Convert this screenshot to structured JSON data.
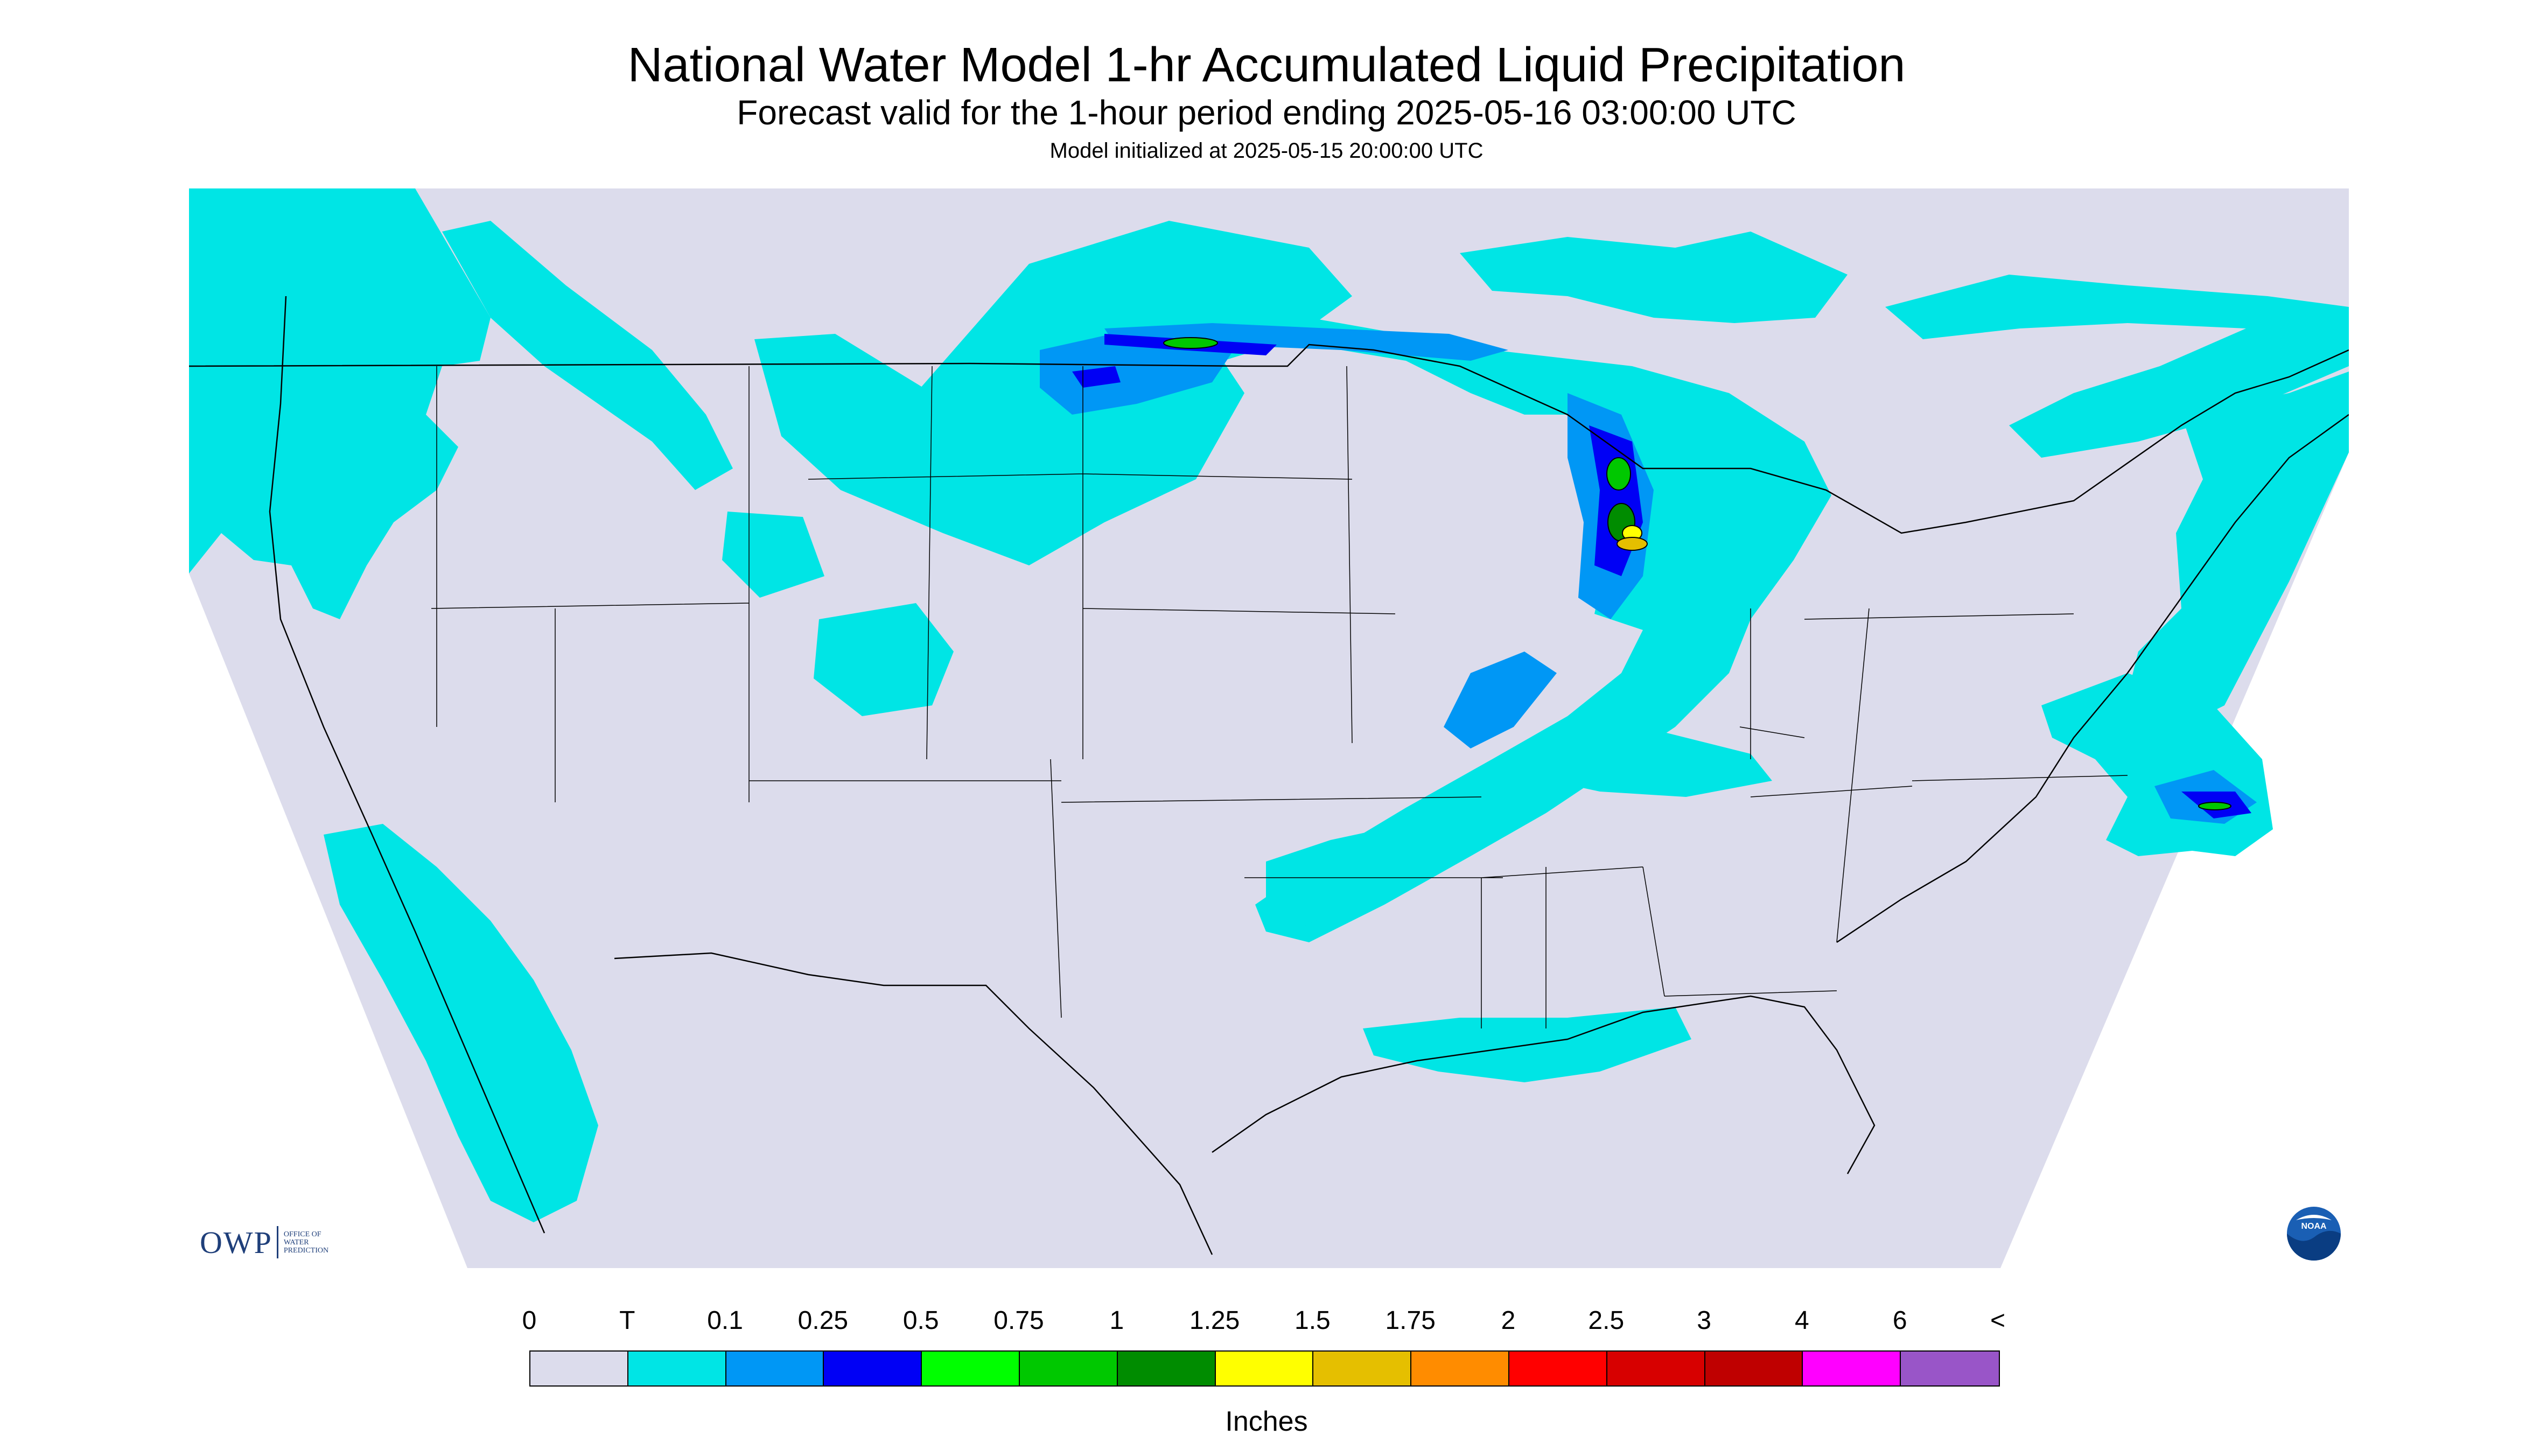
{
  "title": "National Water Model 1-hr Accumulated Liquid Precipitation",
  "subtitle": "Forecast valid for the 1-hour period ending 2025-05-16 03:00:00 UTC",
  "init_line": "Model initialized at 2025-05-15 20:00:00 UTC",
  "logo_owp": {
    "mark": "OWP",
    "text": "OFFICE OF\nWATER\nPREDICTION"
  },
  "logo_noaa": "NOAA",
  "legend": {
    "units": "Inches",
    "labels": [
      "0",
      "T",
      "0.1",
      "0.25",
      "0.5",
      "0.75",
      "1",
      "1.25",
      "1.5",
      "1.75",
      "2",
      "2.5",
      "3",
      "4",
      "6",
      "<"
    ],
    "colors": [
      "#dcdcec",
      "#00e5e5",
      "#0097f5",
      "#0000f5",
      "#00ff00",
      "#00c800",
      "#008c00",
      "#ffff00",
      "#e5bf00",
      "#ff8c00",
      "#ff0000",
      "#d70000",
      "#bf0000",
      "#ff00ff",
      "#9955c8"
    ]
  },
  "map": {
    "background_color": "#dcdcec",
    "outside_color": "#ffffff",
    "boundary_color": "#000000"
  }
}
